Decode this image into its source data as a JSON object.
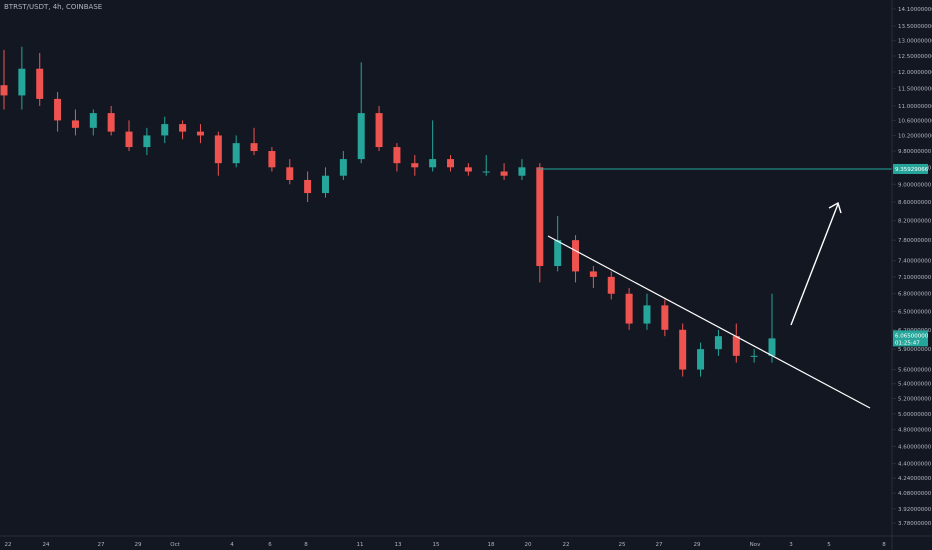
{
  "header": {
    "title": "BTRST/USDT, 4h, COINBASE"
  },
  "colors": {
    "up": "#26a69a",
    "down": "#ef5350",
    "level": "#26a69a",
    "trend": "#ffffff",
    "bg": "#131722"
  },
  "chart_data": {
    "type": "candlestick",
    "x_ticks": [
      "22",
      "24",
      "27",
      "29",
      "Oct",
      "4",
      "6",
      "8",
      "11",
      "13",
      "15",
      "18",
      "20",
      "22",
      "25",
      "27",
      "29",
      "Nov",
      "3",
      "5",
      "8"
    ],
    "y_ticks": [
      "14.10000000",
      "13.50000000",
      "13.00000000",
      "12.50000000",
      "12.00000000",
      "11.50000000",
      "11.00000000",
      "10.60000000",
      "10.20000000",
      "9.80000000",
      "9.40000000",
      "9.00000000",
      "8.60000000",
      "8.20000000",
      "7.80000000",
      "7.40000000",
      "7.10000000",
      "6.80000000",
      "6.50000000",
      "6.20000000",
      "5.90000000",
      "5.60000000",
      "5.40000000",
      "5.20000000",
      "5.00000000",
      "4.80000000",
      "4.60000000",
      "4.40000000",
      "4.24000000",
      "4.08000000",
      "3.92000000",
      "3.78000000"
    ],
    "level_price": "9.35929066",
    "level_value": 9.36,
    "last_price": "6.06500000",
    "last_countdown": "01:25:47",
    "last_value": 6.065,
    "candles": [
      {
        "d": "Sep 21",
        "o": 11.6,
        "h": 12.7,
        "l": 10.9,
        "c": 11.3
      },
      {
        "d": "Sep 22",
        "o": 11.3,
        "h": 12.8,
        "l": 10.9,
        "c": 12.1
      },
      {
        "d": "Sep 23",
        "o": 12.1,
        "h": 12.6,
        "l": 11.0,
        "c": 11.2
      },
      {
        "d": "Sep 24",
        "o": 11.2,
        "h": 11.4,
        "l": 10.3,
        "c": 10.6
      },
      {
        "d": "Sep 25",
        "o": 10.6,
        "h": 10.9,
        "l": 10.2,
        "c": 10.4
      },
      {
        "d": "Sep 26",
        "o": 10.4,
        "h": 10.9,
        "l": 10.2,
        "c": 10.8
      },
      {
        "d": "Sep 27",
        "o": 10.8,
        "h": 11.0,
        "l": 10.2,
        "c": 10.3
      },
      {
        "d": "Sep 28",
        "o": 10.3,
        "h": 10.6,
        "l": 9.8,
        "c": 9.9
      },
      {
        "d": "Sep 29",
        "o": 9.9,
        "h": 10.4,
        "l": 9.7,
        "c": 10.2
      },
      {
        "d": "Sep 30",
        "o": 10.2,
        "h": 10.7,
        "l": 10.0,
        "c": 10.5
      },
      {
        "d": "Oct 1",
        "o": 10.5,
        "h": 10.6,
        "l": 10.1,
        "c": 10.3
      },
      {
        "d": "Oct 2",
        "o": 10.3,
        "h": 10.5,
        "l": 10.0,
        "c": 10.2
      },
      {
        "d": "Oct 3",
        "o": 10.2,
        "h": 10.3,
        "l": 9.2,
        "c": 9.5
      },
      {
        "d": "Oct 4",
        "o": 9.5,
        "h": 10.2,
        "l": 9.4,
        "c": 10.0
      },
      {
        "d": "Oct 5",
        "o": 10.0,
        "h": 10.4,
        "l": 9.7,
        "c": 9.8
      },
      {
        "d": "Oct 6",
        "o": 9.8,
        "h": 9.9,
        "l": 9.3,
        "c": 9.4
      },
      {
        "d": "Oct 7",
        "o": 9.4,
        "h": 9.6,
        "l": 9.0,
        "c": 9.1
      },
      {
        "d": "Oct 8",
        "o": 9.1,
        "h": 9.3,
        "l": 8.6,
        "c": 8.8
      },
      {
        "d": "Oct 9",
        "o": 8.8,
        "h": 9.4,
        "l": 8.7,
        "c": 9.2
      },
      {
        "d": "Oct 10",
        "o": 9.2,
        "h": 9.8,
        "l": 9.1,
        "c": 9.6
      },
      {
        "d": "Oct 11",
        "o": 9.6,
        "h": 12.3,
        "l": 9.5,
        "c": 10.8
      },
      {
        "d": "Oct 12",
        "o": 10.8,
        "h": 11.0,
        "l": 9.8,
        "c": 9.9
      },
      {
        "d": "Oct 13",
        "o": 9.9,
        "h": 10.0,
        "l": 9.3,
        "c": 9.5
      },
      {
        "d": "Oct 14",
        "o": 9.5,
        "h": 9.7,
        "l": 9.2,
        "c": 9.4
      },
      {
        "d": "Oct 15",
        "o": 9.4,
        "h": 10.6,
        "l": 9.3,
        "c": 9.6
      },
      {
        "d": "Oct 16",
        "o": 9.6,
        "h": 9.7,
        "l": 9.3,
        "c": 9.4
      },
      {
        "d": "Oct 17",
        "o": 9.4,
        "h": 9.5,
        "l": 9.2,
        "c": 9.3
      },
      {
        "d": "Oct 18",
        "o": 9.3,
        "h": 9.7,
        "l": 9.2,
        "c": 9.3
      },
      {
        "d": "Oct 19",
        "o": 9.3,
        "h": 9.5,
        "l": 9.1,
        "c": 9.2
      },
      {
        "d": "Oct 20",
        "o": 9.2,
        "h": 9.6,
        "l": 9.1,
        "c": 9.4
      },
      {
        "d": "Oct 21",
        "o": 9.4,
        "h": 9.5,
        "l": 7.0,
        "c": 7.3
      },
      {
        "d": "Oct 22",
        "o": 7.3,
        "h": 8.3,
        "l": 7.2,
        "c": 7.8
      },
      {
        "d": "Oct 23",
        "o": 7.8,
        "h": 7.9,
        "l": 7.0,
        "c": 7.2
      },
      {
        "d": "Oct 24",
        "o": 7.2,
        "h": 7.3,
        "l": 6.9,
        "c": 7.1
      },
      {
        "d": "Oct 25",
        "o": 7.1,
        "h": 7.2,
        "l": 6.7,
        "c": 6.8
      },
      {
        "d": "Oct 26",
        "o": 6.8,
        "h": 6.9,
        "l": 6.2,
        "c": 6.3
      },
      {
        "d": "Oct 27",
        "o": 6.3,
        "h": 6.8,
        "l": 6.2,
        "c": 6.6
      },
      {
        "d": "Oct 28",
        "o": 6.6,
        "h": 6.7,
        "l": 6.1,
        "c": 6.2
      },
      {
        "d": "Oct 29",
        "o": 6.2,
        "h": 6.3,
        "l": 5.5,
        "c": 5.6
      },
      {
        "d": "Oct 30",
        "o": 5.6,
        "h": 6.0,
        "l": 5.5,
        "c": 5.9
      },
      {
        "d": "Oct 31",
        "o": 5.9,
        "h": 6.2,
        "l": 5.8,
        "c": 6.1
      },
      {
        "d": "Nov 1",
        "o": 6.1,
        "h": 6.3,
        "l": 5.7,
        "c": 5.8
      },
      {
        "d": "Nov 2",
        "o": 5.8,
        "h": 5.9,
        "l": 5.7,
        "c": 5.8
      },
      {
        "d": "Nov 3",
        "o": 5.8,
        "h": 6.8,
        "l": 5.7,
        "c": 6.065
      }
    ]
  }
}
